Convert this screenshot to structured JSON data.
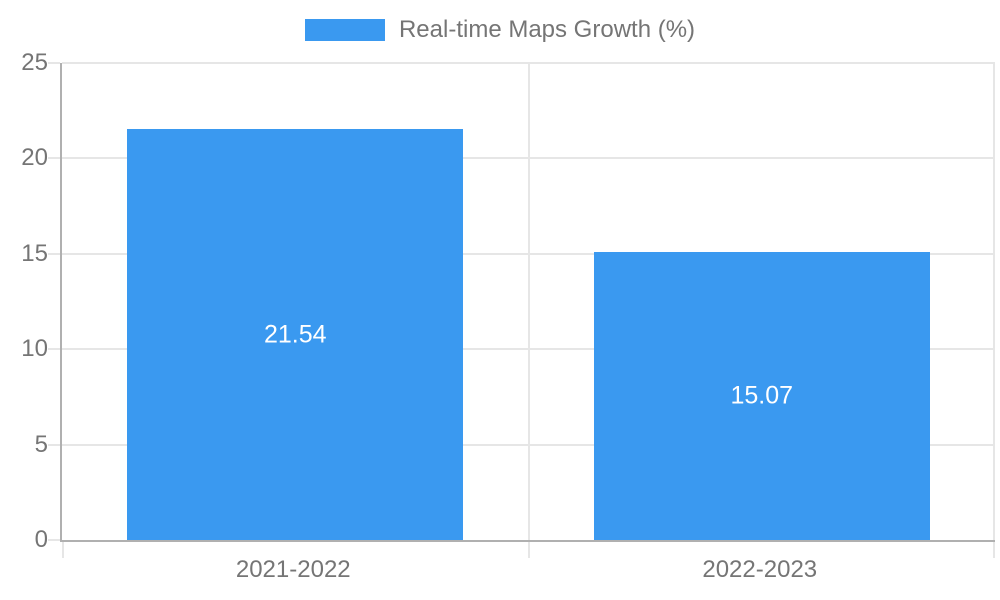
{
  "legend": {
    "label": "Real-time Maps Growth (%)"
  },
  "colors": {
    "bar": "#3a99f0",
    "grid": "#e6e6e6",
    "axis": "#b0b0b0",
    "text": "#757575",
    "value_label": "#ffffff",
    "background": "#ffffff"
  },
  "chart_data": {
    "type": "bar",
    "categories": [
      "2021-2022",
      "2022-2023"
    ],
    "values": [
      21.54,
      15.07
    ],
    "value_labels": [
      "21.54",
      "15.07"
    ],
    "title": "",
    "xlabel": "",
    "ylabel": "",
    "ylim": [
      0,
      25
    ],
    "yticks": [
      0,
      5,
      10,
      15,
      20,
      25
    ],
    "grid": true,
    "legend_entries": [
      "Real-time Maps Growth (%)"
    ],
    "legend_position": "top",
    "value_label_position": "center-of-bar"
  }
}
